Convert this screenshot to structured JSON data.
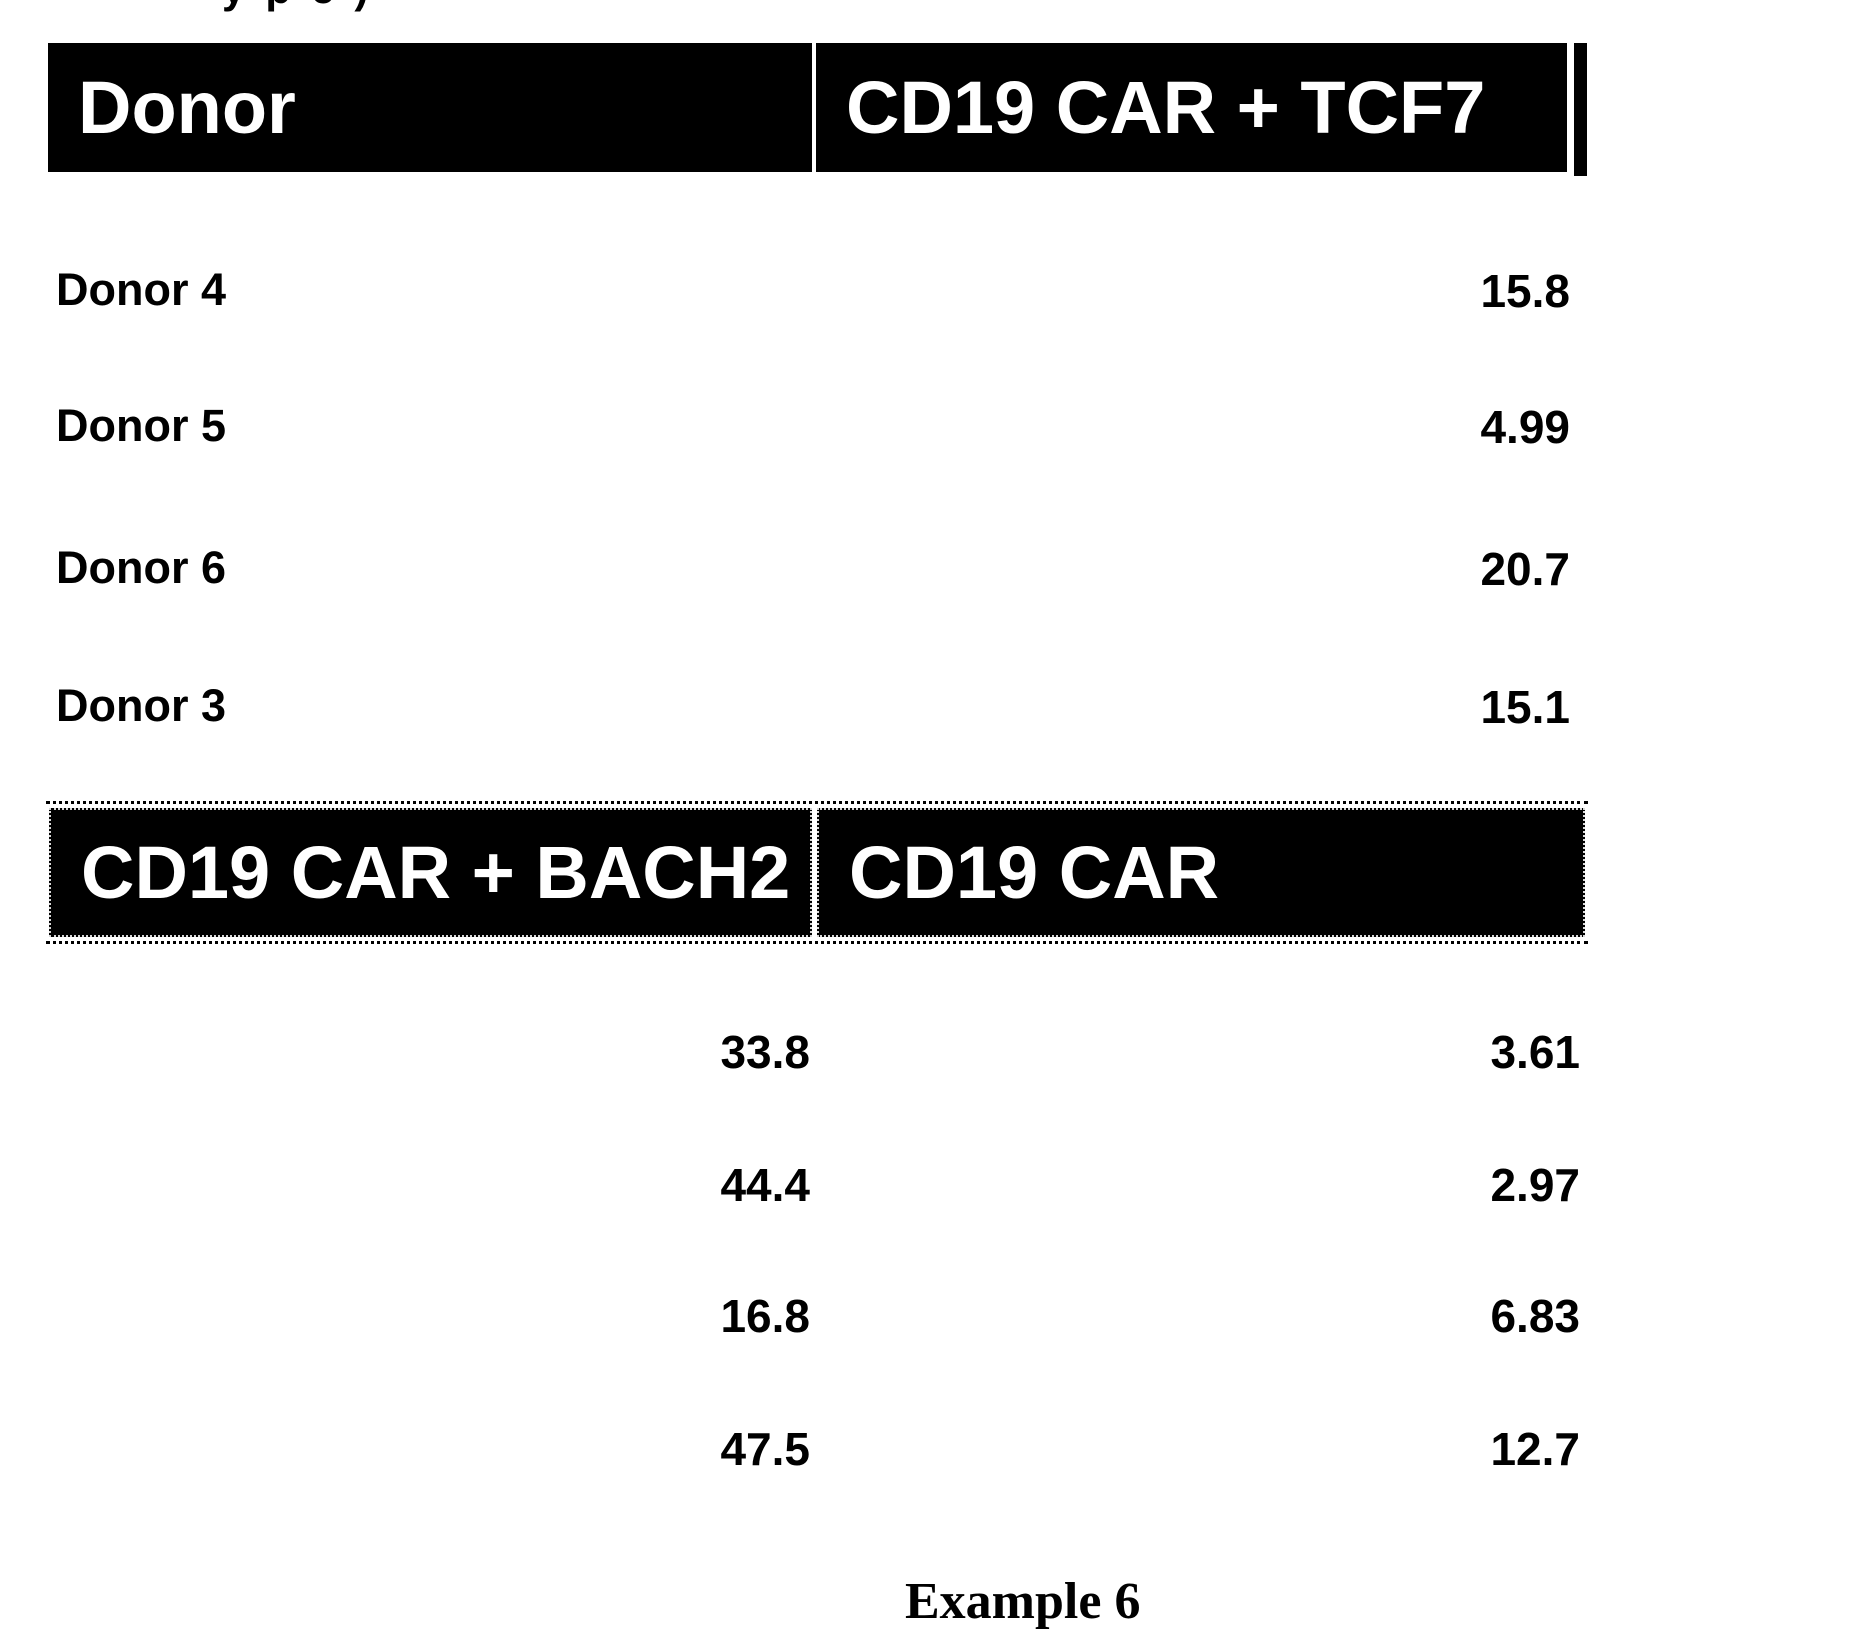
{
  "page": {
    "top_edge_clipped_text": "ype)",
    "caption": "Example 6",
    "colors": {
      "header_bg": "#000000",
      "header_text": "#ffffff",
      "body_text": "#000000",
      "page_bg": "#ffffff"
    }
  },
  "table_part1": {
    "col_headers": [
      "Donor",
      "CD19 CAR + TCF7"
    ],
    "rows": [
      {
        "donor": "Donor 4",
        "cd19_car_tcf7": "15.8"
      },
      {
        "donor": "Donor 5",
        "cd19_car_tcf7": "4.99"
      },
      {
        "donor": "Donor 6",
        "cd19_car_tcf7": "20.7"
      },
      {
        "donor": "Donor 3",
        "cd19_car_tcf7": "15.1"
      }
    ]
  },
  "table_part2": {
    "col_headers": [
      "CD19 CAR + BACH2",
      "CD19 CAR"
    ],
    "rows": [
      {
        "cd19_car_bach2": "33.8",
        "cd19_car": "3.61"
      },
      {
        "cd19_car_bach2": "44.4",
        "cd19_car": "2.97"
      },
      {
        "cd19_car_bach2": "16.8",
        "cd19_car": "6.83"
      },
      {
        "cd19_car_bach2": "47.5",
        "cd19_car": "12.7"
      }
    ]
  },
  "chart_data": {
    "type": "table",
    "columns": [
      "Donor",
      "CD19 CAR + TCF7",
      "CD19 CAR + BACH2",
      "CD19 CAR"
    ],
    "rows": [
      [
        "Donor 4",
        15.8,
        33.8,
        3.61
      ],
      [
        "Donor 5",
        4.99,
        44.4,
        2.97
      ],
      [
        "Donor 6",
        20.7,
        16.8,
        6.83
      ],
      [
        "Donor 3",
        15.1,
        47.5,
        12.7
      ]
    ],
    "caption": "Example 6",
    "layout": "wide table wrapped into two stacked header bands in source scan"
  }
}
